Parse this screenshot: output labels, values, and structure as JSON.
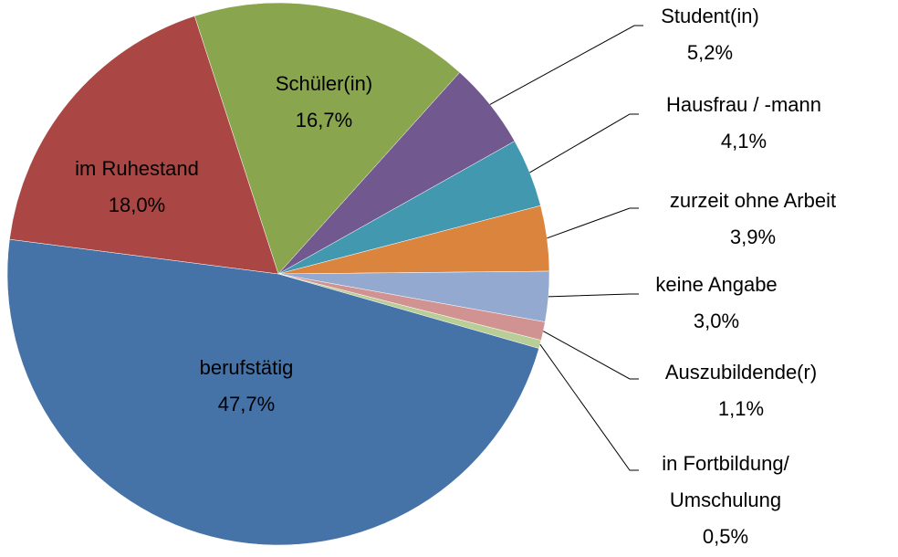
{
  "chart_data": {
    "type": "pie",
    "categories": [
      "Schüler(in)",
      "Student(in)",
      "Hausfrau / -mann",
      "zurzeit ohne Arbeit",
      "keine Angabe",
      "Auszubildende(r)",
      "in Fortbildung/ Umschulung",
      "berufstätig",
      "im Ruhestand"
    ],
    "values": [
      16.7,
      5.2,
      4.1,
      3.9,
      3.0,
      1.1,
      0.5,
      47.7,
      18.0
    ],
    "value_labels": [
      "16,7%",
      "5,2%",
      "4,1%",
      "3,9%",
      "3,0%",
      "1,1%",
      "0,5%",
      "47,7%",
      "18,0%"
    ],
    "colors": [
      "#89a54e",
      "#71588f",
      "#4198af",
      "#db843d",
      "#93a9cf",
      "#d19392",
      "#b9cd96",
      "#4572a7",
      "#aa4643"
    ]
  }
}
